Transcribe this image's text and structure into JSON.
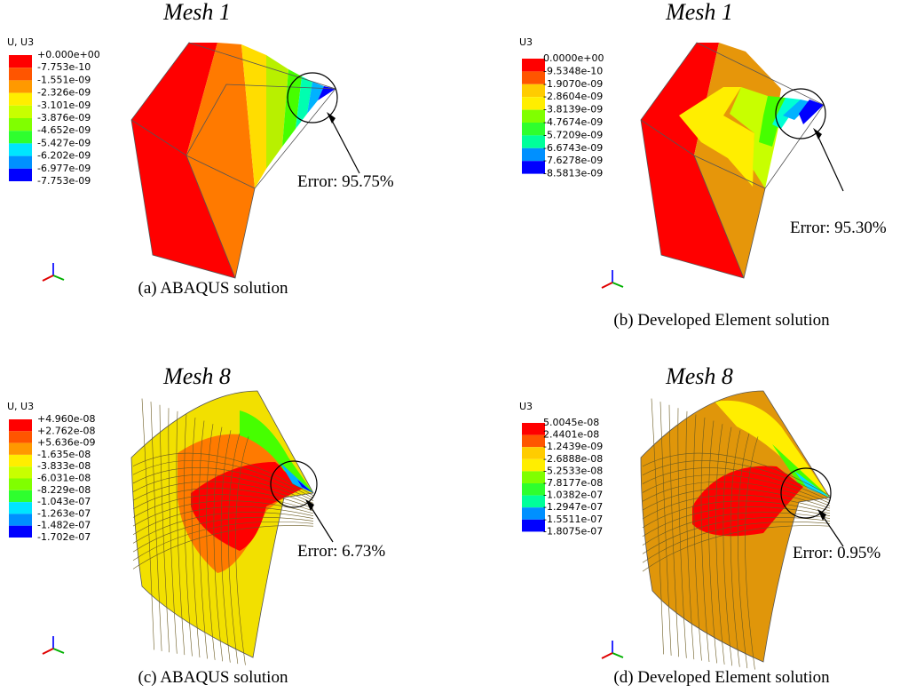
{
  "panels": [
    {
      "title": "Mesh 1",
      "legend": {
        "header": "U, U3",
        "labels": [
          "+0.000e+00",
          "-7.753e-10",
          "-1.551e-09",
          "-2.326e-09",
          "-3.101e-09",
          "-3.876e-09",
          "-4.652e-09",
          "-5.427e-09",
          "-6.202e-09",
          "-6.977e-09",
          "-7.753e-09"
        ]
      },
      "error": "Error: 95.75%",
      "caption": "(a)  ABAQUS solution"
    },
    {
      "title": "Mesh 1",
      "legend": {
        "header": "U3",
        "labels": [
          "0.0000e+00",
          "-9.5348e-10",
          "-1.9070e-09",
          "-2.8604e-09",
          "-3.8139e-09",
          "-4.7674e-09",
          "-5.7209e-09",
          "-6.6743e-09",
          "-7.6278e-09",
          "-8.5813e-09"
        ]
      },
      "error": "Error: 95.30%",
      "caption": "(b) Developed Element solution"
    },
    {
      "title": "Mesh 8",
      "legend": {
        "header": "U, U3",
        "labels": [
          "+4.960e-08",
          "+2.762e-08",
          "+5.636e-09",
          "-1.635e-08",
          "-3.833e-08",
          "-6.031e-08",
          "-8.229e-08",
          "-1.043e-07",
          "-1.263e-07",
          "-1.482e-07",
          "-1.702e-07"
        ]
      },
      "error": "Error: 6.73%",
      "caption": "(c) ABAQUS solution"
    },
    {
      "title": "Mesh 8",
      "legend": {
        "header": "U3",
        "labels": [
          "5.0045e-08",
          "2.4401e-08",
          "-1.2439e-09",
          "-2.6888e-08",
          "-5.2533e-08",
          "-7.8177e-08",
          "-1.0382e-07",
          "-1.2947e-07",
          "-1.5511e-07",
          "-1.8075e-07"
        ]
      },
      "error": "Error: 0.95%",
      "caption": "(d) Developed Element solution"
    }
  ]
}
